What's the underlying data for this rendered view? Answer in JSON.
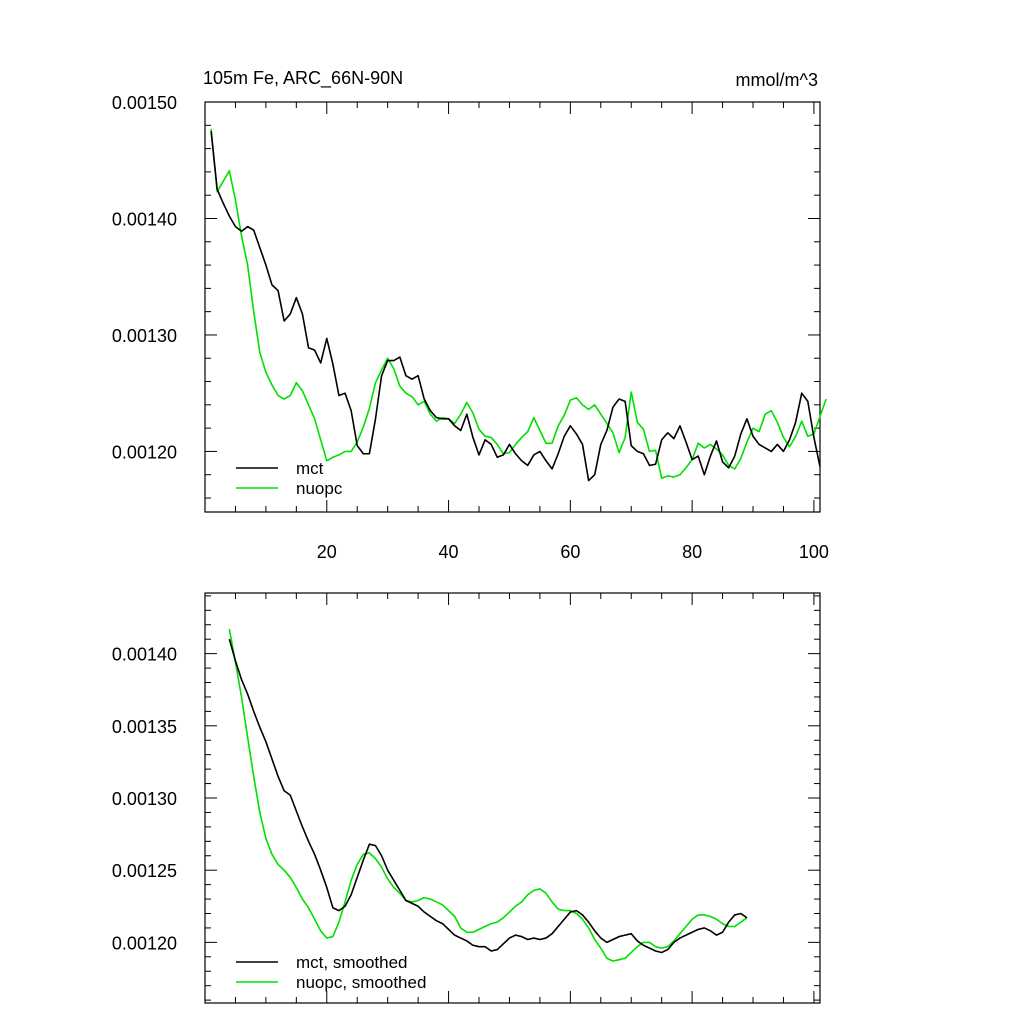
{
  "title_left": "105m Fe, ARC_66N-90N",
  "title_right": "mmol/m^3",
  "colors": {
    "mct": "#000000",
    "nuopc": "#00e000",
    "axis": "#000000"
  },
  "chart_data": [
    {
      "type": "line",
      "title": "105m Fe, ARC_66N-90N",
      "units": "mmol/m^3",
      "xlim": [
        0,
        101
      ],
      "ylim": [
        0.001148,
        0.0015
      ],
      "x_ticks": [
        20,
        40,
        60,
        80,
        100
      ],
      "x_tick_labels": [
        "20",
        "40",
        "60",
        "80",
        "100"
      ],
      "y_ticks": [
        0.0012,
        0.0013,
        0.0014,
        0.0015
      ],
      "y_tick_labels": [
        "0.00120",
        "0.00130",
        "0.00140",
        "0.00150"
      ],
      "x_start": 1,
      "legend": "bottom-left",
      "series": [
        {
          "name": "mct",
          "color": "#000000",
          "values": [
            0.001475,
            0.001425,
            0.001413,
            0.001402,
            0.001393,
            0.001389,
            0.001393,
            0.00139,
            0.001375,
            0.00136,
            0.001343,
            0.001338,
            0.001312,
            0.001318,
            0.001332,
            0.001318,
            0.001289,
            0.001287,
            0.001276,
            0.001297,
            0.001275,
            0.001248,
            0.00125,
            0.001235,
            0.001205,
            0.001198,
            0.001198,
            0.001228,
            0.001265,
            0.001278,
            0.001278,
            0.001281,
            0.001265,
            0.001262,
            0.001265,
            0.001245,
            0.001235,
            0.001229,
            0.001228,
            0.001228,
            0.001222,
            0.001218,
            0.001232,
            0.001212,
            0.001197,
            0.00121,
            0.001206,
            0.001195,
            0.001197,
            0.001206,
            0.001198,
            0.001192,
            0.001188,
            0.001197,
            0.0012,
            0.001192,
            0.001185,
            0.001198,
            0.001213,
            0.001222,
            0.001215,
            0.001206,
            0.001175,
            0.00118,
            0.001206,
            0.001218,
            0.001238,
            0.001245,
            0.001243,
            0.001205,
            0.0012,
            0.001198,
            0.001188,
            0.001189,
            0.00121,
            0.001216,
            0.001211,
            0.001222,
            0.001208,
            0.001193,
            0.001196,
            0.00118,
            0.001196,
            0.001209,
            0.001191,
            0.001186,
            0.001196,
            0.001215,
            0.001228,
            0.001213,
            0.001206,
            0.001203,
            0.0012,
            0.001206,
            0.0012,
            0.00121,
            0.001225,
            0.00125,
            0.001243,
            0.001212,
            0.001187
          ]
        },
        {
          "name": "nuopc",
          "color": "#00e000",
          "values": [
            0.001477,
            0.001423,
            0.001432,
            0.001441,
            0.001416,
            0.001385,
            0.00136,
            0.00132,
            0.001285,
            0.001268,
            0.001257,
            0.001248,
            0.001245,
            0.001248,
            0.001259,
            0.001252,
            0.00124,
            0.001228,
            0.00121,
            0.001192,
            0.001195,
            0.001197,
            0.0012,
            0.0012,
            0.001208,
            0.001221,
            0.001237,
            0.001259,
            0.00127,
            0.00128,
            0.001271,
            0.001256,
            0.00125,
            0.001247,
            0.00124,
            0.001243,
            0.001232,
            0.001226,
            0.001229,
            0.001228,
            0.001224,
            0.001232,
            0.001242,
            0.001233,
            0.001219,
            0.001213,
            0.001212,
            0.001206,
            0.001198,
            0.001199,
            0.001206,
            0.001212,
            0.001217,
            0.001229,
            0.001218,
            0.001207,
            0.001207,
            0.001222,
            0.001231,
            0.001244,
            0.001246,
            0.00124,
            0.001236,
            0.00124,
            0.001232,
            0.001224,
            0.001216,
            0.001199,
            0.001212,
            0.001251,
            0.001225,
            0.001219,
            0.0012,
            0.001201,
            0.001177,
            0.001179,
            0.001178,
            0.00118,
            0.001186,
            0.001193,
            0.001207,
            0.001203,
            0.001206,
            0.001202,
            0.001197,
            0.001188,
            0.001185,
            0.001194,
            0.001208,
            0.00122,
            0.001217,
            0.001232,
            0.001235,
            0.001225,
            0.001212,
            0.001204,
            0.001213,
            0.001226,
            0.001213,
            0.001215,
            0.00123,
            0.001245
          ]
        }
      ]
    },
    {
      "type": "line",
      "xlim": [
        0,
        101
      ],
      "ylim": [
        0.001158,
        0.001442
      ],
      "x_ticks": [
        20,
        40,
        60,
        80,
        100
      ],
      "y_ticks": [
        0.0012,
        0.00125,
        0.0013,
        0.00135,
        0.0014
      ],
      "y_tick_labels": [
        "0.00120",
        "0.00125",
        "0.00130",
        "0.00135",
        "0.00140"
      ],
      "x_start": 4,
      "legend": "bottom-left",
      "series": [
        {
          "name": "mct, smoothed",
          "color": "#000000",
          "values": [
            0.00141,
            0.001395,
            0.001382,
            0.001372,
            0.00136,
            0.001349,
            0.001339,
            0.001327,
            0.001315,
            0.001305,
            0.001302,
            0.001291,
            0.00128,
            0.00127,
            0.001261,
            0.00125,
            0.001238,
            0.001224,
            0.001222,
            0.001225,
            0.001233,
            0.001245,
            0.001257,
            0.001268,
            0.001267,
            0.00126,
            0.00125,
            0.001243,
            0.001236,
            0.001229,
            0.001227,
            0.001225,
            0.001221,
            0.001218,
            0.001215,
            0.001213,
            0.001209,
            0.001205,
            0.001203,
            0.001201,
            0.001198,
            0.001197,
            0.001197,
            0.001194,
            0.001195,
            0.001199,
            0.001203,
            0.001205,
            0.001204,
            0.001202,
            0.001203,
            0.001202,
            0.001203,
            0.001206,
            0.001211,
            0.001216,
            0.001221,
            0.001222,
            0.001219,
            0.001214,
            0.001208,
            0.001203,
            0.0012,
            0.001202,
            0.001204,
            0.001205,
            0.001206,
            0.001201,
            0.001198,
            0.001196,
            0.001194,
            0.001193,
            0.001195,
            0.0012,
            0.001203,
            0.001205,
            0.001207,
            0.001209,
            0.00121,
            0.001208,
            0.001205,
            0.001207,
            0.001214,
            0.001219,
            0.00122,
            0.001217
          ]
        },
        {
          "name": "nuopc, smoothed",
          "color": "#00e000",
          "values": [
            0.001417,
            0.001394,
            0.00137,
            0.001342,
            0.001315,
            0.00129,
            0.001272,
            0.001261,
            0.001254,
            0.00125,
            0.001245,
            0.001238,
            0.00123,
            0.001224,
            0.001216,
            0.001208,
            0.001203,
            0.001204,
            0.001214,
            0.001228,
            0.001243,
            0.001254,
            0.001261,
            0.001262,
            0.001258,
            0.001252,
            0.001244,
            0.001238,
            0.001234,
            0.001229,
            0.001228,
            0.001229,
            0.001231,
            0.00123,
            0.001228,
            0.001226,
            0.001222,
            0.001218,
            0.00121,
            0.001207,
            0.001207,
            0.001209,
            0.001211,
            0.001213,
            0.001214,
            0.001217,
            0.001221,
            0.001225,
            0.001228,
            0.001233,
            0.001236,
            0.001237,
            0.001234,
            0.001228,
            0.001223,
            0.001222,
            0.001222,
            0.00122,
            0.001216,
            0.00121,
            0.001202,
            0.001196,
            0.001189,
            0.001187,
            0.001188,
            0.001189,
            0.001193,
            0.001197,
            0.0012,
            0.0012,
            0.001197,
            0.001196,
            0.001197,
            0.001201,
            0.001206,
            0.001211,
            0.001216,
            0.001219,
            0.001219,
            0.001218,
            0.001216,
            0.001213,
            0.001211,
            0.001211,
            0.001214,
            0.001217
          ]
        }
      ]
    }
  ]
}
